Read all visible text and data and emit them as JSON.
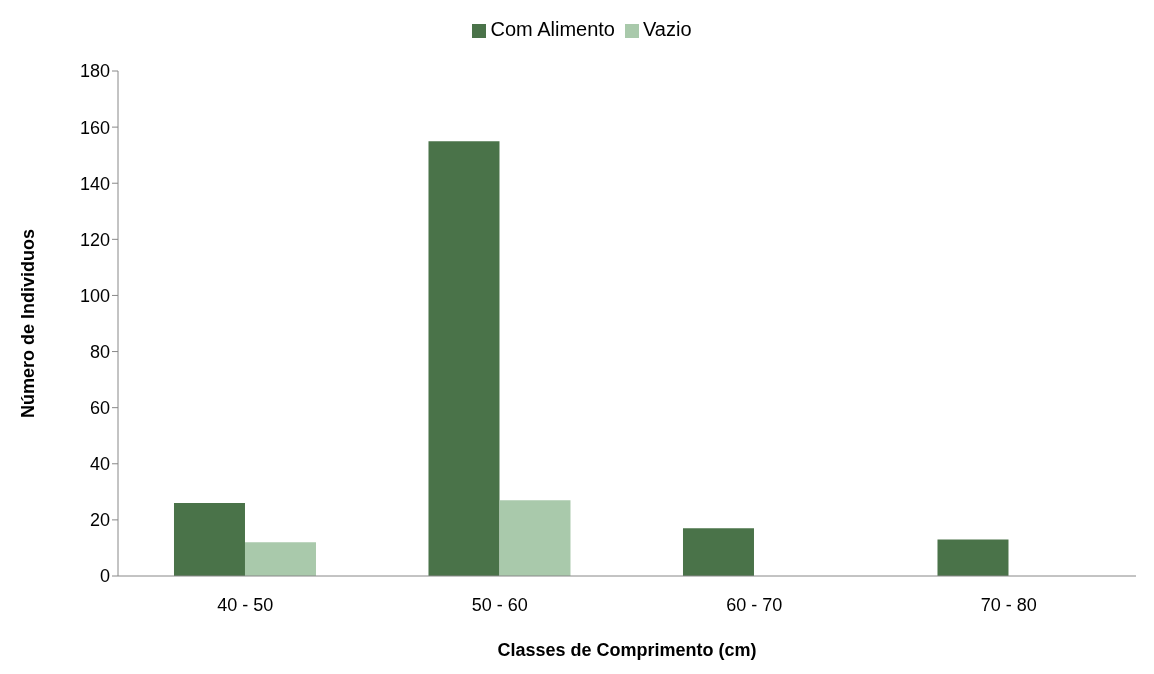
{
  "chart_data": {
    "type": "bar",
    "xlabel": "Classes de Comprimento (cm)",
    "ylabel": "Número de Individuos",
    "categories": [
      "40 - 50",
      "50 - 60",
      "60 - 70",
      "70 - 80"
    ],
    "series": [
      {
        "name": "Com Alimento",
        "color": "#4a7349",
        "values": [
          26,
          155,
          17,
          13
        ]
      },
      {
        "name": "Vazio",
        "color": "#a9c9ab",
        "values": [
          12,
          27,
          0,
          0
        ]
      }
    ],
    "ylim": [
      0,
      180
    ],
    "yticks": [
      0,
      20,
      40,
      60,
      80,
      100,
      120,
      140,
      160,
      180
    ],
    "grid": false,
    "legend": "top"
  }
}
